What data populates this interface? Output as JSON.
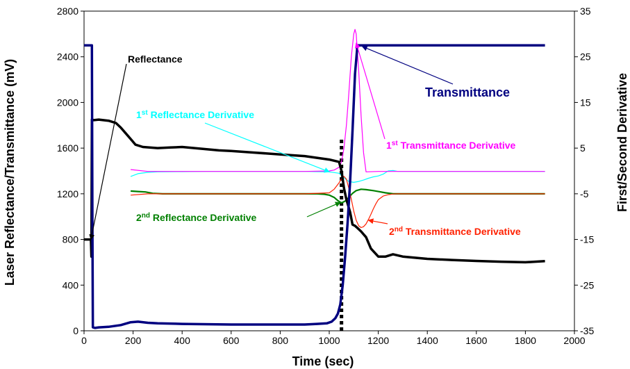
{
  "chart_data": {
    "type": "line",
    "xlabel": "Time (sec)",
    "ylabel": "Laser Reflectance/Transmittance (mV)",
    "y2label": "First/Second Derivative",
    "xlim": [
      0,
      2000
    ],
    "ylim": [
      0,
      2800
    ],
    "y2lim": [
      -35,
      35
    ],
    "xticks": [
      0,
      200,
      400,
      600,
      800,
      1000,
      1200,
      1400,
      1600,
      1800,
      2000
    ],
    "yticks": [
      0,
      400,
      800,
      1200,
      1600,
      2000,
      2400,
      2800
    ],
    "y2ticks": [
      -35,
      -25,
      -15,
      -5,
      5,
      15,
      25,
      35
    ],
    "grid": false,
    "legend": "none",
    "series": [
      {
        "name": "Reflectance",
        "axis": "left",
        "color": "#000000",
        "width": 3.5,
        "x": [
          0,
          28,
          30,
          32,
          40,
          60,
          100,
          130,
          150,
          170,
          190,
          210,
          240,
          300,
          350,
          400,
          450,
          500,
          550,
          600,
          700,
          800,
          900,
          950,
          1000,
          1040,
          1050,
          1060,
          1070,
          1085,
          1095,
          1105,
          1115,
          1130,
          1150,
          1170,
          1200,
          1230,
          1260,
          1300,
          1400,
          1500,
          1600,
          1700,
          1800,
          1880
        ],
        "y": [
          800,
          800,
          650,
          1850,
          1845,
          1850,
          1840,
          1820,
          1780,
          1730,
          1680,
          1630,
          1610,
          1600,
          1605,
          1610,
          1600,
          1590,
          1580,
          1575,
          1560,
          1545,
          1530,
          1515,
          1500,
          1480,
          1400,
          1250,
          1150,
          1040,
          930,
          920,
          900,
          870,
          820,
          720,
          650,
          650,
          670,
          650,
          630,
          620,
          612,
          605,
          600,
          610
        ]
      },
      {
        "name": "Transmittance",
        "axis": "left",
        "color": "#000080",
        "width": 3.5,
        "x": [
          0,
          10,
          28,
          32,
          34,
          36,
          45,
          60,
          100,
          150,
          190,
          220,
          260,
          300,
          400,
          600,
          800,
          900,
          950,
          990,
          1010,
          1025,
          1035,
          1045,
          1055,
          1065,
          1075,
          1085,
          1095,
          1105,
          1115,
          1125,
          1135,
          1200,
          1400,
          1600,
          1800,
          1880
        ],
        "y": [
          2500,
          2500,
          2500,
          2500,
          1000,
          30,
          25,
          30,
          35,
          50,
          75,
          80,
          70,
          65,
          60,
          55,
          55,
          55,
          60,
          65,
          80,
          110,
          150,
          230,
          400,
          650,
          950,
          1300,
          1750,
          2250,
          2500,
          2500,
          2500,
          2500,
          2500,
          2500,
          2500,
          2500
        ]
      },
      {
        "name": "1st Reflectance Derivative",
        "axis": "right",
        "color": "#00FFFF",
        "width": 1.2,
        "x": [
          190,
          220,
          260,
          300,
          400,
          500,
          600,
          700,
          800,
          900,
          1000,
          1040,
          1060,
          1080,
          1100,
          1120,
          1140,
          1160,
          1180,
          1200,
          1220,
          1240,
          1260,
          1280,
          1300,
          1400,
          1500,
          1600,
          1700,
          1800,
          1880
        ],
        "y": [
          -1.2,
          -0.6,
          -0.3,
          -0.2,
          -0.15,
          -0.1,
          -0.1,
          -0.1,
          -0.1,
          -0.1,
          -0.2,
          -0.5,
          -1.5,
          -2.3,
          -2.5,
          -2.3,
          -2.0,
          -1.6,
          -1.3,
          -1.1,
          -0.7,
          0.0,
          0.1,
          -0.1,
          -0.1,
          -0.1,
          -0.1,
          -0.1,
          -0.1,
          -0.1,
          -0.1
        ]
      },
      {
        "name": "1st Transmittance Derivative",
        "axis": "right",
        "color": "#FF00FF",
        "width": 1.2,
        "x": [
          190,
          260,
          400,
          600,
          800,
          900,
          1000,
          1020,
          1040,
          1050,
          1060,
          1070,
          1080,
          1090,
          1100,
          1105,
          1110,
          1120,
          1130,
          1140,
          1150,
          1200,
          1400,
          1600,
          1800,
          1880
        ],
        "y": [
          0.3,
          -0.1,
          -0.1,
          -0.1,
          -0.1,
          -0.1,
          0.0,
          0.2,
          0.8,
          2.0,
          5.0,
          10.0,
          17.0,
          25.0,
          30.0,
          31.0,
          30.0,
          22.0,
          12.0,
          4.0,
          -0.2,
          -0.1,
          -0.1,
          -0.1,
          -0.1,
          -0.1
        ]
      },
      {
        "name": "2nd Reflectance Derivative",
        "axis": "right",
        "color": "#008000",
        "width": 2.2,
        "x": [
          190,
          220,
          250,
          280,
          320,
          400,
          600,
          800,
          900,
          950,
          980,
          1000,
          1020,
          1035,
          1050,
          1065,
          1080,
          1095,
          1110,
          1130,
          1150,
          1180,
          1200,
          1230,
          1260,
          1300,
          1400,
          1600,
          1800,
          1880
        ],
        "y": [
          -4.4,
          -4.5,
          -4.6,
          -4.9,
          -5.0,
          -5.0,
          -5.0,
          -5.0,
          -5.0,
          -5.0,
          -5.1,
          -5.3,
          -5.8,
          -6.5,
          -7.0,
          -6.6,
          -5.8,
          -4.9,
          -4.3,
          -4.0,
          -4.1,
          -4.3,
          -4.5,
          -4.8,
          -5.0,
          -5.0,
          -5.0,
          -5.0,
          -5.0,
          -5.0
        ]
      },
      {
        "name": "2nd Transmittance Derivative",
        "axis": "right",
        "color": "#FF2000",
        "width": 1.2,
        "x": [
          190,
          260,
          400,
          600,
          800,
          900,
          1000,
          1020,
          1040,
          1050,
          1060,
          1070,
          1080,
          1090,
          1100,
          1110,
          1120,
          1130,
          1140,
          1150,
          1160,
          1170,
          1180,
          1190,
          1200,
          1220,
          1240,
          1260,
          1280,
          1300,
          1400,
          1600,
          1800,
          1880
        ],
        "y": [
          -5.3,
          -5.0,
          -5.0,
          -5.0,
          -5.0,
          -5.0,
          -4.8,
          -4.0,
          -2.6,
          -1.7,
          -1.2,
          -1.8,
          -3.8,
          -6.2,
          -8.8,
          -10.8,
          -12.0,
          -12.4,
          -12.2,
          -11.6,
          -10.6,
          -9.5,
          -8.3,
          -7.2,
          -6.3,
          -5.5,
          -5.2,
          -5.05,
          -5.0,
          -5.0,
          -5.0,
          -5.0,
          -5.0,
          -5.0
        ]
      }
    ],
    "marker_line": {
      "x": 1050,
      "y_range": [
        0,
        1680
      ],
      "style": "dotted"
    },
    "annotations": [
      {
        "name": "reflectance",
        "parts": [
          {
            "t": "Reflectance"
          }
        ],
        "color": "#000000",
        "target_axis": "left",
        "target": [
          28,
          800
        ]
      },
      {
        "name": "transmittance",
        "parts": [
          {
            "t": "Transmittance"
          }
        ],
        "color": "#000080",
        "target_axis": "left",
        "target": [
          1135,
          2490
        ]
      },
      {
        "name": "first-reflectance-derivative",
        "parts": [
          {
            "t": "1"
          },
          {
            "t": "st",
            "sup": true
          },
          {
            "t": " Reflectance Derivative"
          }
        ],
        "color": "#00FFFF",
        "target_axis": "right",
        "target": [
          1000,
          -0.2
        ]
      },
      {
        "name": "first-transmittance-derivative",
        "parts": [
          {
            "t": "1"
          },
          {
            "t": "st",
            "sup": true
          },
          {
            "t": " Transmittance Derivative"
          }
        ],
        "color": "#FF00FF",
        "target_axis": "right",
        "target": [
          1110,
          28
        ]
      },
      {
        "name": "second-reflectance-derivative",
        "parts": [
          {
            "t": "2"
          },
          {
            "t": "nd",
            "sup": true
          },
          {
            "t": " Reflectance Derivative"
          }
        ],
        "color": "#008000",
        "target_axis": "right",
        "target": [
          1045,
          -6.9
        ]
      },
      {
        "name": "second-transmittance-derivative",
        "parts": [
          {
            "t": "2"
          },
          {
            "t": "nd",
            "sup": true
          },
          {
            "t": " Transmittance Derivative"
          }
        ],
        "color": "#FF2000",
        "target_axis": "right",
        "target": [
          1160,
          -10.8
        ]
      }
    ]
  }
}
